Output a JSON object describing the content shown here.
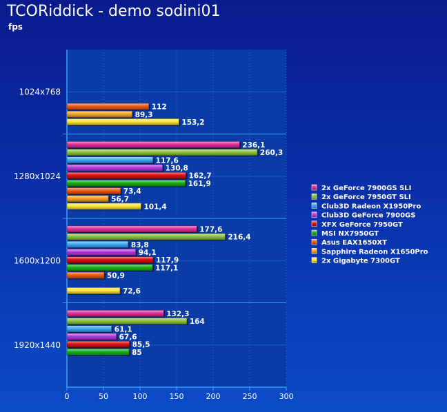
{
  "chart_data": {
    "type": "bar",
    "orientation": "horizontal",
    "title": "TCORiddick - demo sodini01",
    "ylabel": "fps",
    "xlabel": "",
    "xlim": [
      0,
      300
    ],
    "xticks": [
      0,
      50,
      100,
      150,
      200,
      250,
      300
    ],
    "grid": true,
    "legend_position": "right",
    "categories": [
      "1024x768",
      "1280x1024",
      "1600x1200",
      "1920x1440"
    ],
    "series": [
      {
        "name": "2x GeForce 7900GS SLI",
        "color": "#e0309a",
        "values": [
          null,
          236.1,
          177.6,
          132.3
        ],
        "labels": [
          "",
          "236,1",
          "177,6",
          "132,3"
        ]
      },
      {
        "name": "2x GeForce 7950GT SLI",
        "color": "#8ec63f",
        "values": [
          null,
          260.3,
          216.4,
          164
        ],
        "labels": [
          "",
          "260,3",
          "216,4",
          "164"
        ]
      },
      {
        "name": "Club3D Radeon X1950Pro",
        "color": "#3fa9f5",
        "values": [
          null,
          117.6,
          83.8,
          61.1
        ],
        "labels": [
          "",
          "117,6",
          "83,8",
          "61,1"
        ]
      },
      {
        "name": "Club3D GeForce 7900GS",
        "color": "#b83ae0",
        "values": [
          null,
          130.8,
          94.1,
          67.6
        ],
        "labels": [
          "",
          "130,8",
          "94,1",
          "67,6"
        ]
      },
      {
        "name": "XFX GeForce 7950GT",
        "color": "#e01010",
        "values": [
          null,
          162.7,
          117.9,
          85.5
        ],
        "labels": [
          "",
          "162,7",
          "117,9",
          "85,5"
        ]
      },
      {
        "name": "MSI NX7950GT",
        "color": "#18b418",
        "values": [
          null,
          161.9,
          117.1,
          85
        ],
        "labels": [
          "",
          "161,9",
          "117,1",
          "85"
        ]
      },
      {
        "name": "Asus EAX1650XT",
        "color": "#f05a14",
        "values": [
          112,
          73.4,
          50.9,
          null
        ],
        "labels": [
          "112",
          "73,4",
          "50,9",
          ""
        ]
      },
      {
        "name": "Sapphire Radeon X1650Pro",
        "color": "#f5a623",
        "values": [
          89.3,
          56.7,
          null,
          null
        ],
        "labels": [
          "89,3",
          "56,7",
          "",
          ""
        ]
      },
      {
        "name": "2x Gigabyte 7300GT",
        "color": "#ffe633",
        "values": [
          153.2,
          101.4,
          72.6,
          null
        ],
        "labels": [
          "153,2",
          "101,4",
          "72,6",
          ""
        ]
      }
    ]
  }
}
